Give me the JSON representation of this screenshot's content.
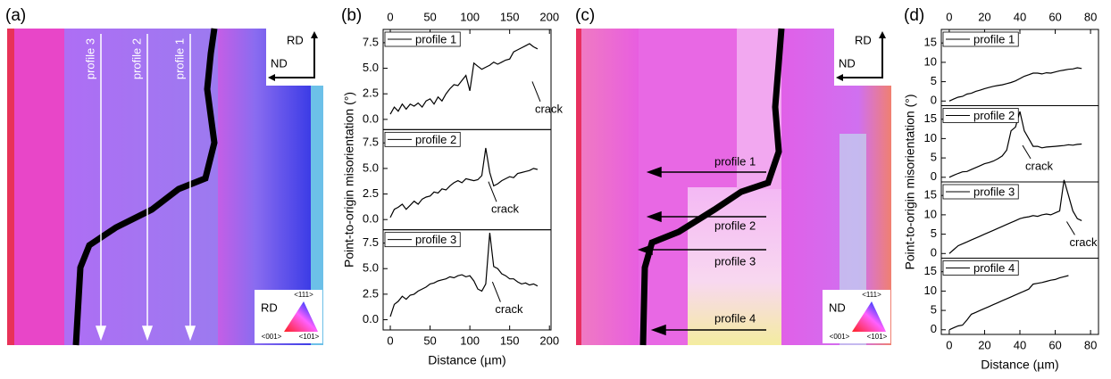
{
  "figure": {
    "panel_labels": [
      "(a)",
      "(b)",
      "(c)",
      "(d)"
    ],
    "map_a": {
      "profiles": [
        "profile 3",
        "profile 2",
        "profile 1"
      ],
      "axes": [
        "RD",
        "ND"
      ],
      "legend_dir": "RD",
      "poles": [
        "<111>",
        "<001>",
        "<101>"
      ]
    },
    "map_c": {
      "profiles": [
        "profile 1",
        "profile 2",
        "profile 3",
        "profile 4"
      ],
      "axes": [
        "RD",
        "ND"
      ],
      "legend_dir": "ND",
      "poles": [
        "<111>",
        "<001>",
        "<101>"
      ]
    }
  },
  "chart_data": [
    {
      "type": "line",
      "xlabel": "Distance (µm)",
      "ylabel": "Point-to-origin misorientation (°)",
      "x": [
        0,
        5,
        10,
        15,
        20,
        25,
        30,
        35,
        40,
        45,
        50,
        55,
        60,
        65,
        70,
        75,
        80,
        85,
        90,
        95,
        100,
        105,
        110,
        115,
        120,
        125,
        130,
        135,
        140,
        145,
        150,
        155,
        160,
        165,
        170,
        175,
        180,
        185
      ],
      "xlim": [
        -9,
        202
      ],
      "xticks": [
        0,
        50,
        100,
        150,
        200
      ],
      "ylim": [
        -1,
        8.8
      ],
      "yticks": [
        {
          "value": 0,
          "label": "0.0"
        },
        {
          "value": 2.5,
          "label": "2.5"
        },
        {
          "value": 5,
          "label": "5.0"
        },
        {
          "value": 7.5,
          "label": "7.5"
        }
      ],
      "series": [
        {
          "name": "profile 1",
          "color": "#000000",
          "annotation": "crack",
          "values": [
            0.5,
            1.2,
            0.8,
            1.5,
            1.0,
            1.5,
            1.3,
            1.6,
            1.2,
            1.8,
            2.0,
            1.5,
            2.2,
            1.8,
            2.5,
            3.0,
            3.4,
            3.3,
            3.8,
            4.3,
            2.8,
            5.5,
            5.2,
            4.9,
            5.1,
            5.3,
            5.6,
            5.4,
            5.6,
            5.8,
            5.9,
            6.6,
            6.8,
            7.0,
            7.2,
            7.4,
            7.1,
            6.9
          ]
        },
        {
          "name": "profile 2",
          "color": "#000000",
          "annotation": "crack",
          "values": [
            0.2,
            1.0,
            1.2,
            1.5,
            1.0,
            1.4,
            1.8,
            1.5,
            2.0,
            2.2,
            2.3,
            2.7,
            2.6,
            3.0,
            2.9,
            3.3,
            3.6,
            3.8,
            3.6,
            4.0,
            3.9,
            3.8,
            3.9,
            4.3,
            7.0,
            4.6,
            3.3,
            3.5,
            3.8,
            4.0,
            4.2,
            4.1,
            4.5,
            4.6,
            4.7,
            4.8,
            5.0,
            4.9
          ]
        },
        {
          "name": "profile 3",
          "color": "#000000",
          "annotation": "crack",
          "values": [
            0.3,
            1.5,
            1.8,
            2.3,
            2.0,
            2.4,
            2.5,
            2.8,
            3.0,
            3.2,
            3.5,
            3.6,
            3.8,
            3.9,
            4.0,
            4.2,
            4.1,
            4.3,
            4.4,
            4.2,
            4.3,
            3.8,
            3.0,
            2.8,
            3.5,
            8.5,
            5.2,
            5.0,
            4.5,
            4.3,
            4.0,
            4.0,
            3.7,
            3.5,
            3.6,
            3.4,
            3.5,
            3.3
          ]
        }
      ]
    },
    {
      "type": "line",
      "xlabel": "Distance (µm)",
      "ylabel": "Point-to-origin misorientation (°)",
      "x": [
        0,
        2.5,
        5,
        7.5,
        10,
        12.5,
        15,
        17.5,
        20,
        22.5,
        25,
        27.5,
        30,
        32.5,
        35,
        37.5,
        40,
        42.5,
        45,
        47.5,
        50,
        52.5,
        55,
        57.5,
        60,
        62.5,
        65,
        67.5,
        70,
        72.5,
        75
      ],
      "xlim": [
        -4.5,
        84.5
      ],
      "xticks": [
        0,
        20,
        40,
        60,
        80
      ],
      "ylim": [
        -1.2,
        18.5
      ],
      "yticks": [
        0,
        5,
        10,
        15
      ],
      "series": [
        {
          "name": "profile 1",
          "color": "#000000",
          "values": [
            0,
            0.5,
            1.0,
            1.2,
            1.8,
            2.0,
            2.5,
            2.8,
            3.2,
            3.5,
            3.8,
            4.0,
            4.2,
            4.5,
            4.8,
            5.2,
            5.8,
            6.4,
            6.8,
            7.2,
            7.2,
            7.0,
            7.3,
            7.2,
            7.5,
            7.8,
            8.0,
            8.2,
            8.3,
            8.6,
            8.4
          ]
        },
        {
          "name": "profile 2",
          "color": "#000000",
          "annotation": "crack",
          "values": [
            0,
            0.5,
            1.0,
            1.4,
            1.5,
            2.0,
            2.5,
            3.0,
            3.5,
            3.8,
            4.2,
            4.8,
            5.5,
            7.0,
            12.0,
            13.0,
            17.0,
            12.0,
            10.0,
            8.0,
            8.0,
            7.6,
            7.8,
            7.9,
            8.0,
            8.1,
            8.2,
            8.4,
            8.3,
            8.5,
            8.6
          ]
        },
        {
          "name": "profile 3",
          "color": "#000000",
          "annotation": "crack",
          "values": [
            0,
            1,
            2,
            2.5,
            3,
            3.5,
            4,
            4.5,
            5,
            5.5,
            6,
            6.5,
            7,
            7.5,
            8,
            8.5,
            9,
            9.3,
            9.5,
            9.8,
            9.6,
            10,
            10.2,
            10,
            10.5,
            11,
            19,
            15,
            11,
            9,
            8.5
          ]
        },
        {
          "name": "profile 4",
          "color": "#000000",
          "values": [
            0,
            0.5,
            1.0,
            1.2,
            2.5,
            4,
            4.5,
            5,
            5.5,
            6,
            6.5,
            7,
            7.5,
            8,
            8.5,
            9,
            9.5,
            10,
            10.5,
            11.8,
            12,
            12.2,
            12.5,
            12.8,
            13,
            13.4,
            13.7,
            14,
            null,
            null,
            null
          ]
        }
      ]
    }
  ]
}
